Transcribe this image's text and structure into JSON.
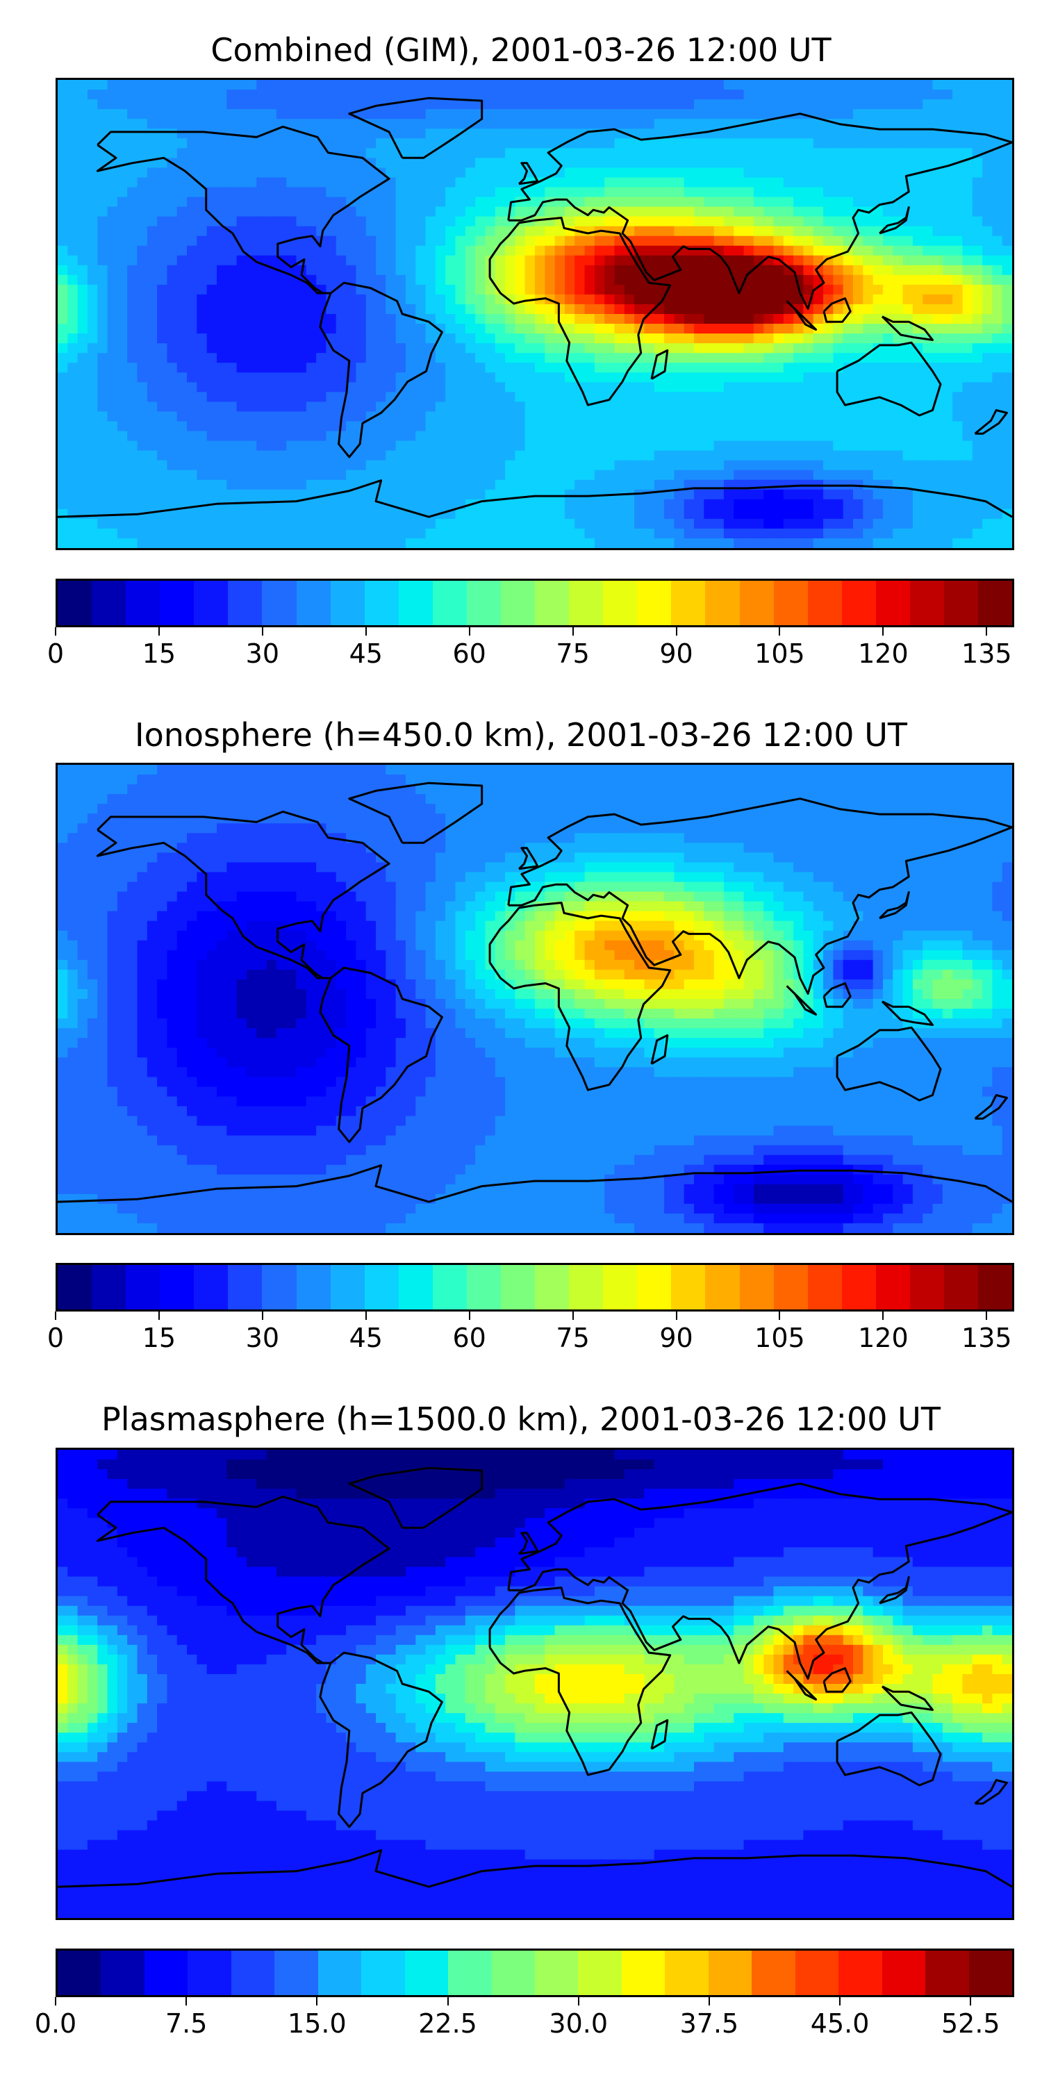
{
  "panels": [
    {
      "title": "Combined (GIM), 2001-03-26 12:00 UT",
      "colorbar": {
        "min": 0,
        "max": 139,
        "levels": 28,
        "ticks": [
          "0",
          "15",
          "30",
          "45",
          "60",
          "75",
          "90",
          "105",
          "120",
          "135"
        ],
        "tick_values": [
          0,
          15,
          30,
          45,
          60,
          75,
          90,
          105,
          120,
          135
        ]
      },
      "field": {
        "base": 0.33,
        "blobs": [
          {
            "lon": 40,
            "lat": 15,
            "amp": 0.62,
            "slon": 40,
            "slat": 17
          },
          {
            "lon": 75,
            "lat": 5,
            "amp": 0.35,
            "slon": 22,
            "slat": 12
          },
          {
            "lon": 105,
            "lat": 10,
            "amp": 0.3,
            "slon": 28,
            "slat": 12
          },
          {
            "lon": 155,
            "lat": 5,
            "amp": 0.3,
            "slon": 14,
            "slat": 10
          },
          {
            "lon": -180,
            "lat": 0,
            "amp": 0.12,
            "slon": 12,
            "slat": 12
          },
          {
            "lon": -100,
            "lat": 0,
            "amp": -0.18,
            "slon": 45,
            "slat": 40
          },
          {
            "lon": 90,
            "lat": -75,
            "amp": -0.22,
            "slon": 30,
            "slat": 10
          },
          {
            "lon": 0,
            "lat": 85,
            "amp": -0.1,
            "slon": 120,
            "slat": 10
          }
        ]
      }
    },
    {
      "title": "Ionosphere  (h=450.0 km), 2001-03-26 12:00 UT",
      "colorbar": {
        "min": 0,
        "max": 139,
        "levels": 28,
        "ticks": [
          "0",
          "15",
          "30",
          "45",
          "60",
          "75",
          "90",
          "105",
          "120",
          "135"
        ],
        "tick_values": [
          0,
          15,
          30,
          45,
          60,
          75,
          90,
          105,
          120,
          135
        ]
      },
      "field": {
        "base": 0.26,
        "blobs": [
          {
            "lon": 35,
            "lat": 20,
            "amp": 0.45,
            "slon": 38,
            "slat": 18
          },
          {
            "lon": 80,
            "lat": 0,
            "amp": 0.15,
            "slon": 30,
            "slat": 15
          },
          {
            "lon": 155,
            "lat": 5,
            "amp": 0.22,
            "slon": 14,
            "slat": 10
          },
          {
            "lon": 120,
            "lat": 10,
            "amp": -0.2,
            "slon": 10,
            "slat": 8
          },
          {
            "lon": -180,
            "lat": 0,
            "amp": 0.08,
            "slon": 12,
            "slat": 12
          },
          {
            "lon": -100,
            "lat": 0,
            "amp": -0.2,
            "slon": 40,
            "slat": 40
          },
          {
            "lon": 100,
            "lat": -75,
            "amp": -0.22,
            "slon": 30,
            "slat": 10
          }
        ]
      }
    },
    {
      "title": "Plasmasphere (h=1500.0 km), 2001-03-26 12:00 UT",
      "colorbar": {
        "min": 0,
        "max": 55,
        "levels": 22,
        "ticks": [
          "0.0",
          "7.5",
          "15.0",
          "22.5",
          "30.0",
          "37.5",
          "45.0",
          "52.5"
        ],
        "tick_values": [
          0,
          7.5,
          15,
          22.5,
          30,
          37.5,
          45,
          52.5
        ]
      },
      "field": {
        "base": 0.18,
        "blobs": [
          {
            "lon": 20,
            "lat": 0,
            "amp": 0.45,
            "slon": 50,
            "slat": 20
          },
          {
            "lon": 110,
            "lat": 10,
            "amp": 0.55,
            "slon": 20,
            "slat": 14
          },
          {
            "lon": 160,
            "lat": 0,
            "amp": 0.28,
            "slon": 25,
            "slat": 15
          },
          {
            "lon": -180,
            "lat": 0,
            "amp": 0.25,
            "slon": 20,
            "slat": 20
          },
          {
            "lon": -60,
            "lat": 55,
            "amp": -0.12,
            "slon": 70,
            "slat": 25
          },
          {
            "lon": 0,
            "lat": 85,
            "amp": -0.12,
            "slon": 160,
            "slat": 10
          }
        ]
      }
    }
  ],
  "colors": {
    "palette": [
      "#00007f",
      "#0000b2",
      "#0000e8",
      "#0000ff",
      "#0b16ff",
      "#1a44ff",
      "#1f6cff",
      "#1a8eff",
      "#14b0ff",
      "#0bd2ff",
      "#00f0f0",
      "#2dffc9",
      "#59ffa3",
      "#7cff7c",
      "#a3ff59",
      "#c9ff2d",
      "#e8ff10",
      "#fffa00",
      "#ffd200",
      "#ffae00",
      "#ff8a00",
      "#ff6600",
      "#ff3f00",
      "#ff1a00",
      "#e80000",
      "#c00000",
      "#a00000",
      "#7f0000"
    ],
    "coastline": "#000000"
  }
}
